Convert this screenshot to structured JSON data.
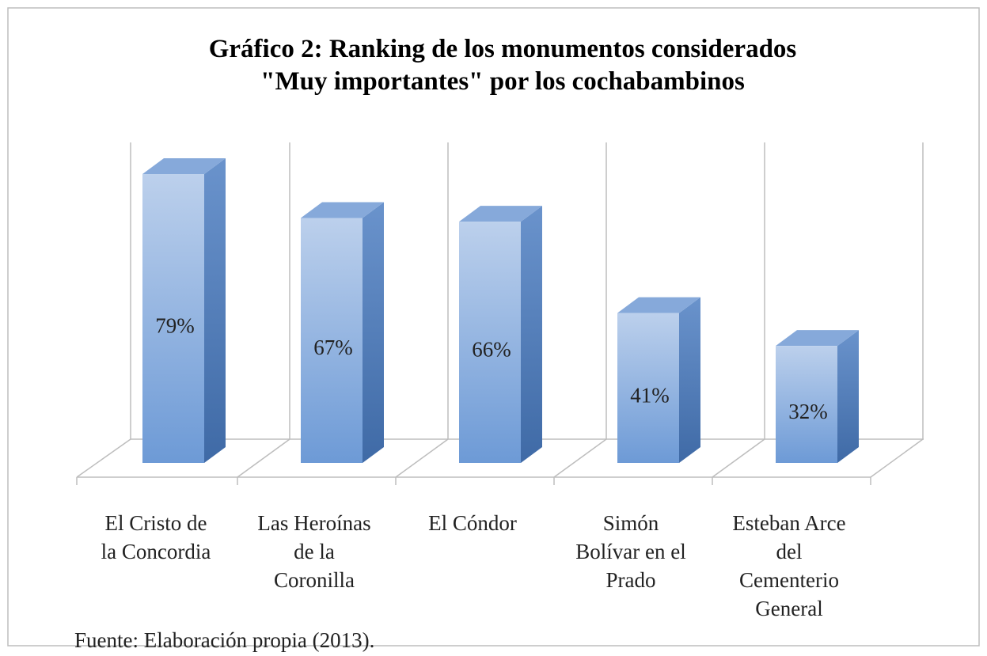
{
  "chart_data": {
    "type": "bar3d",
    "title": "Gráfico 2: Ranking de los monumentos considerados",
    "subtitle": "\"Muy importantes\" por los cochabambinos",
    "categories": [
      "El Cristo de\nla Concordia",
      "Las Heroínas\nde la\nCoronilla",
      "El Cóndor",
      "Simón\nBolívar en el\nPrado",
      "Esteban Arce\ndel\nCementerio\nGeneral"
    ],
    "values": [
      79,
      67,
      66,
      41,
      32
    ],
    "value_labels": [
      "79%",
      "67%",
      "66%",
      "41%",
      "32%"
    ],
    "color": "#6f9bd6",
    "grid": true,
    "source": "Fuente: Elaboración propia (2013)."
  }
}
